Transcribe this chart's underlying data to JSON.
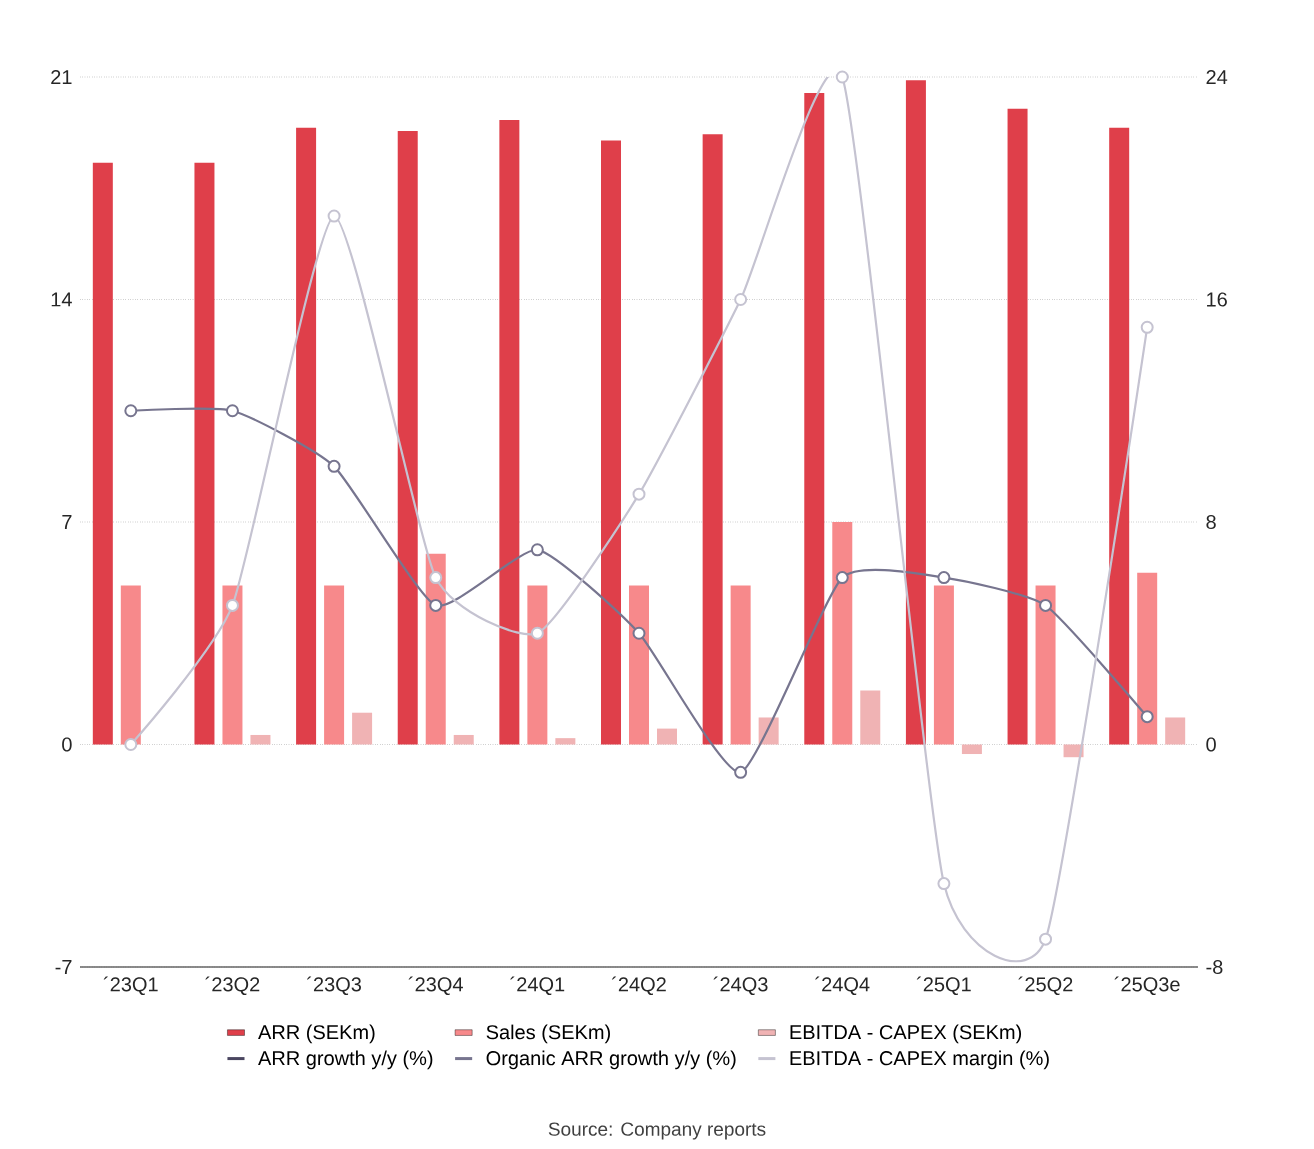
{
  "chart_data": {
    "type": "bar",
    "categories": [
      "´23Q1",
      "´23Q2",
      "´23Q3",
      "´23Q4",
      "´24Q1",
      "´24Q2",
      "´24Q3",
      "´24Q4",
      "´25Q1",
      "´25Q2",
      "´25Q3e"
    ],
    "series": [
      {
        "name": "ARR (SEKm)",
        "color": "#df3f4a",
        "values": [
          18.3,
          18.3,
          19.4,
          19.3,
          19.65,
          19.0,
          19.2,
          20.5,
          20.9,
          20.0,
          19.4
        ]
      },
      {
        "name": "Sales (SEKm)",
        "color": "#f7898b",
        "values": [
          5.0,
          5.0,
          5.0,
          6.0,
          5.0,
          5.0,
          5.0,
          7.0,
          5.0,
          5.0,
          5.4
        ]
      },
      {
        "name": "EBITDA - CAPEX (SEKm)",
        "color": "#f0b3b4",
        "values": [
          0,
          0.3,
          1.0,
          0.3,
          0.2,
          0.5,
          0.85,
          1.7,
          -0.3,
          -0.4,
          0.85
        ]
      },
      {
        "name": "ARR growth y/y (%)",
        "type": "line",
        "axis": "y2",
        "color": "#4a4660",
        "values": [
          null,
          null,
          null,
          null,
          null,
          null,
          null,
          null,
          null,
          null,
          null
        ]
      },
      {
        "name": "Organic ARR growth y/y (%)",
        "type": "line",
        "axis": "y2",
        "color": "#77758f",
        "values": [
          12.0,
          12.0,
          10.0,
          5.0,
          7.0,
          4.0,
          -1.0,
          6.0,
          6.0,
          5.0,
          1.0
        ]
      },
      {
        "name": "EBITDA - CAPEX margin (%)",
        "type": "line",
        "axis": "y2",
        "color": "#c5c3d1",
        "values": [
          0,
          5.0,
          19.0,
          6.0,
          4.0,
          9.0,
          16.0,
          24.0,
          -5.0,
          -7.0,
          15.0
        ]
      }
    ],
    "ylim": [
      -7,
      21
    ],
    "yticks": [
      -7,
      0,
      7,
      14,
      21
    ],
    "y2lim": [
      -8,
      24
    ],
    "y2ticks": [
      -8,
      0,
      8,
      16,
      24
    ],
    "grid": "y",
    "legend": "bottom",
    "marker": "circle",
    "line_style": "solid",
    "annotations": [
      "Source: Company reports"
    ]
  }
}
